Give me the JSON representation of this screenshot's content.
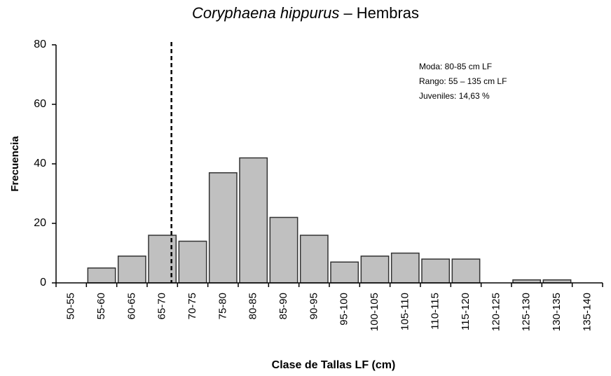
{
  "chart_data": {
    "type": "histogram",
    "title": {
      "species": "Coryphaena hippurus",
      "text": " – Hembras"
    },
    "xlabel": "Clase de Tallas LF (cm)",
    "ylabel": "Frecuencia",
    "bins": [
      50,
      55,
      60,
      65,
      70,
      75,
      80,
      85,
      90,
      95,
      100,
      105,
      110,
      115,
      120,
      125,
      130,
      135,
      140
    ],
    "categories": [
      "50-55",
      "55-60",
      "60-65",
      "65-70",
      "70-75",
      "75-80",
      "80-85",
      "85-90",
      "90-95",
      "95-100",
      "100-105",
      "105-110",
      "110-115",
      "115-120",
      "120-125",
      "125-130",
      "130-135",
      "135-140"
    ],
    "values": [
      0,
      5,
      9,
      16,
      14,
      37,
      42,
      22,
      16,
      7,
      9,
      10,
      8,
      8,
      0,
      1,
      1,
      0
    ],
    "color": "#c0c0c0",
    "xlim": [
      50,
      140
    ],
    "ylim": [
      0,
      80
    ],
    "yticks": [
      0,
      20,
      40,
      60,
      80
    ],
    "reference_line": 69,
    "annotations": [
      "Moda:  80-85 cm LF",
      "Rango: 55 – 135 cm LF",
      "Juveniles: 14,63  %"
    ]
  }
}
